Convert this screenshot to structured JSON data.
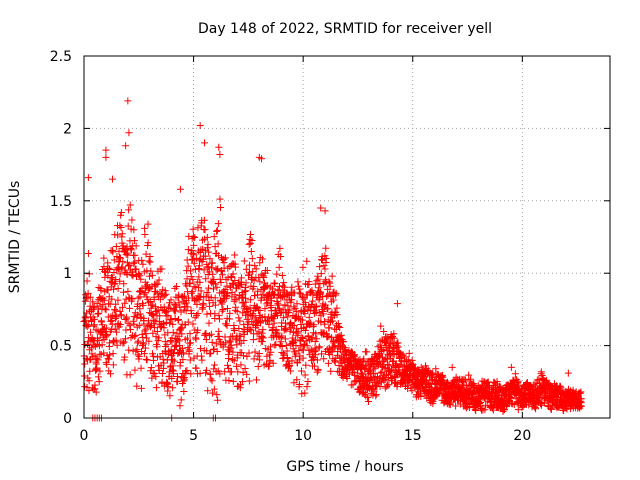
{
  "chart_data": {
    "type": "scatter",
    "title": "Day 148 of 2022, SRMTID for receiver yell",
    "xlabel": "GPS time / hours",
    "ylabel": "SRMTID / TECUs",
    "xlim": [
      0,
      24
    ],
    "ylim": [
      0,
      2.5
    ],
    "xticks": [
      0,
      5,
      10,
      15,
      20
    ],
    "yticks": [
      0,
      0.5,
      1,
      1.5,
      2,
      2.5
    ],
    "xtick_labels": [
      "0",
      "5",
      "10",
      "15",
      "20"
    ],
    "ytick_labels": [
      "0",
      "0.5",
      "1",
      "1.5",
      "2",
      "2.5"
    ],
    "grid": true,
    "legend": "none",
    "marker": "plus",
    "color": "#ff0000",
    "series": [
      {
        "name": "SRMTID",
        "envelope": {
          "x": [
            0,
            0.5,
            1,
            1.5,
            2,
            2.5,
            3,
            3.5,
            4,
            4.5,
            5,
            5.5,
            6,
            6.5,
            7,
            7.5,
            8,
            8.5,
            9,
            9.5,
            10,
            10.5,
            11,
            11.5,
            12,
            12.5,
            13,
            13.5,
            14,
            14.5,
            15,
            15.5,
            16,
            16.5,
            17,
            17.5,
            18,
            18.5,
            19,
            19.5,
            20,
            20.5,
            21,
            21.5,
            22,
            22.7
          ],
          "min": [
            0.05,
            0.05,
            0.2,
            0.3,
            0.2,
            0.2,
            0.2,
            0.15,
            0.0,
            0.1,
            0.2,
            0.2,
            0.05,
            0.15,
            0.0,
            0.15,
            0.2,
            0.3,
            0.35,
            0.15,
            0.05,
            0.3,
            0.25,
            0.3,
            0.25,
            0.15,
            0.1,
            0.15,
            0.2,
            0.2,
            0.15,
            0.1,
            0.08,
            0.07,
            0.06,
            0.05,
            0.05,
            0.04,
            0.03,
            0.04,
            0.05,
            0.05,
            0.05,
            0.05,
            0.05,
            0.06
          ],
          "max": [
            1.3,
            1.05,
            1.5,
            1.65,
            1.9,
            1.5,
            1.45,
            1.3,
            1.0,
            1.3,
            1.6,
            1.7,
            1.8,
            1.4,
            1.45,
            1.3,
            1.55,
            1.2,
            1.3,
            1.1,
            1.25,
            1.25,
            1.4,
            0.95,
            0.55,
            0.5,
            0.55,
            0.65,
            0.75,
            0.55,
            0.45,
            0.45,
            0.38,
            0.35,
            0.32,
            0.35,
            0.32,
            0.3,
            0.3,
            0.35,
            0.3,
            0.3,
            0.35,
            0.3,
            0.22,
            0.24
          ],
          "points_per_hour": 130
        },
        "outliers": [
          {
            "x": 0.2,
            "y": 1.66
          },
          {
            "x": 1.0,
            "y": 1.85
          },
          {
            "x": 1.0,
            "y": 1.8
          },
          {
            "x": 2.0,
            "y": 2.19
          },
          {
            "x": 2.05,
            "y": 1.97
          },
          {
            "x": 1.9,
            "y": 1.88
          },
          {
            "x": 5.3,
            "y": 2.02
          },
          {
            "x": 5.5,
            "y": 1.9
          },
          {
            "x": 6.15,
            "y": 1.87
          },
          {
            "x": 6.2,
            "y": 1.82
          },
          {
            "x": 8.1,
            "y": 1.79
          },
          {
            "x": 8.0,
            "y": 1.8
          },
          {
            "x": 4.4,
            "y": 1.58
          },
          {
            "x": 1.3,
            "y": 1.65
          },
          {
            "x": 14.3,
            "y": 0.79
          },
          {
            "x": 11.0,
            "y": 1.43
          },
          {
            "x": 10.8,
            "y": 1.45
          },
          {
            "x": 22.1,
            "y": 0.31
          },
          {
            "x": 19.5,
            "y": 0.35
          },
          {
            "x": 16.8,
            "y": 0.35
          }
        ],
        "zero_points": [
          0.4,
          0.5,
          0.6,
          0.7,
          0.8,
          4.0,
          5.9,
          6.0
        ]
      }
    ]
  }
}
